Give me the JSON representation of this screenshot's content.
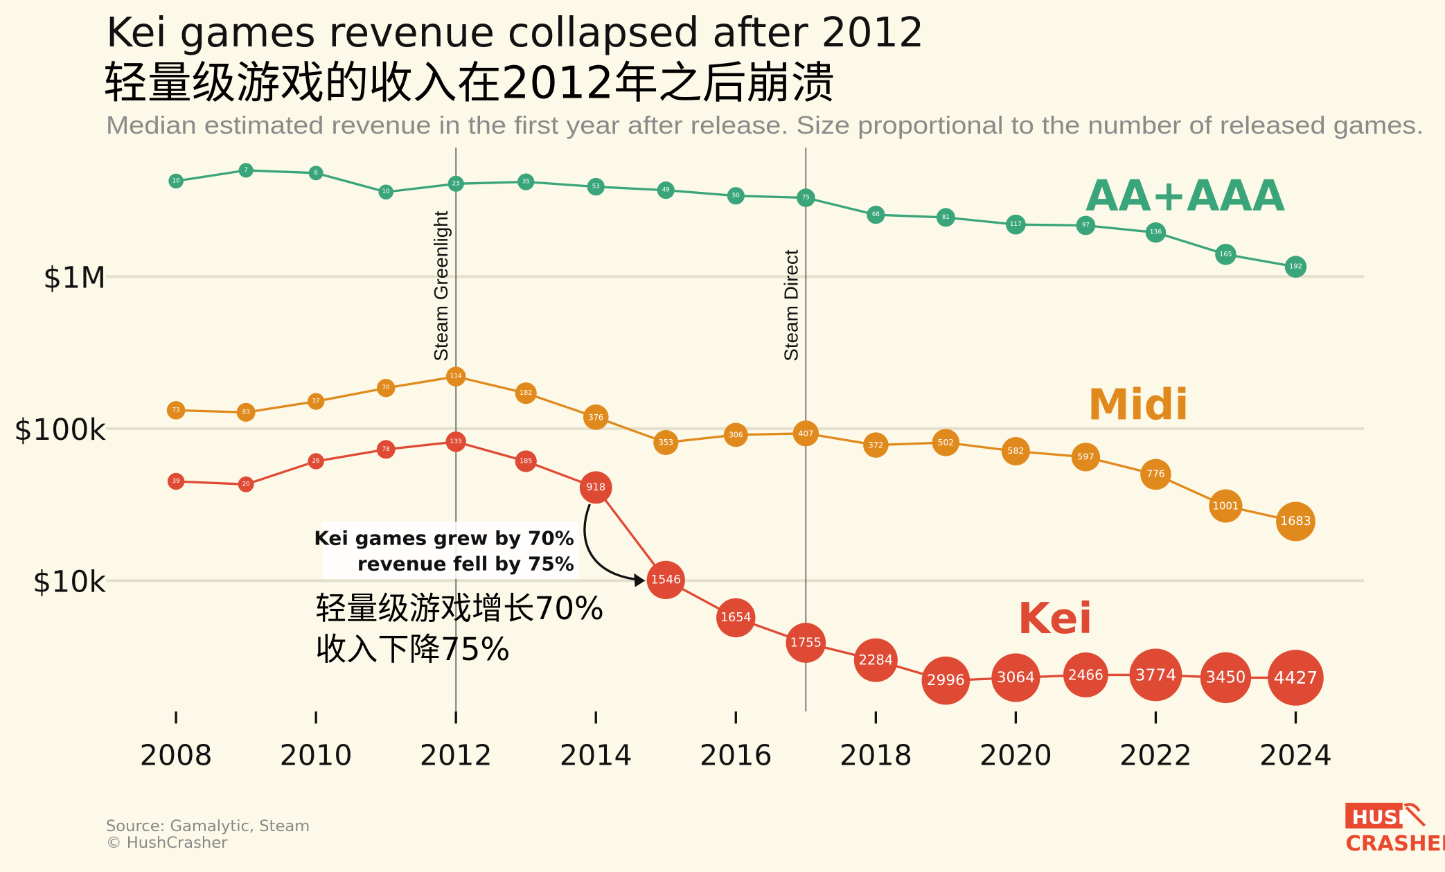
{
  "title": "Kei games revenue collapsed after 2012",
  "subtitle": "Median estimated revenue in the first year after release. Size proportional to the number of released games.",
  "title_translation": "轻量级游戏的收入在2012年之后崩溃",
  "source": "Source: Gamalytic, Steam",
  "copyright": "© HushCrasher",
  "logo": {
    "line1": "HUSH",
    "line2": "CRASHER",
    "color": "#e8492f"
  },
  "chart_data": {
    "type": "line",
    "title": "Kei games revenue collapsed after 2012",
    "xlabel": "",
    "ylabel": "",
    "y_scale": "log",
    "ylim": [
      1000,
      6000000
    ],
    "grid": true,
    "y_ticks": [
      {
        "value": 1000000,
        "label": "$1M"
      },
      {
        "value": 100000,
        "label": "$100k"
      },
      {
        "value": 10000,
        "label": "$10k"
      }
    ],
    "x_ticks": [
      2008,
      2010,
      2012,
      2014,
      2016,
      2018,
      2020,
      2022,
      2024
    ],
    "x_tick_labels": [
      "2008",
      "2010",
      "2012",
      "2014",
      "2016",
      "2018",
      "2020",
      "2022",
      "2024"
    ],
    "x": [
      2008,
      2009,
      2010,
      2011,
      2012,
      2013,
      2014,
      2015,
      2016,
      2017,
      2018,
      2019,
      2020,
      2021,
      2022,
      2023,
      2024
    ],
    "series": [
      {
        "name": "AA+AAA",
        "color": "#3aa57a",
        "values": [
          4250000,
          5000000,
          4800000,
          3600000,
          4080000,
          4200000,
          3900000,
          3700000,
          3400000,
          3300000,
          2550000,
          2450000,
          2200000,
          2170000,
          1950000,
          1400000,
          1160000
        ],
        "game_counts": [
          10,
          7,
          6,
          10,
          23,
          35,
          53,
          49,
          50,
          75,
          68,
          81,
          117,
          97,
          136,
          165,
          192
        ]
      },
      {
        "name": "Midi",
        "color": "#e08a1e",
        "values": [
          132000,
          128000,
          151000,
          185000,
          220000,
          171000,
          119000,
          81000,
          91000,
          93000,
          78000,
          81000,
          71000,
          65000,
          50000,
          31000,
          24500
        ],
        "game_counts": [
          73,
          83,
          37,
          70,
          114,
          182,
          376,
          353,
          306,
          407,
          372,
          502,
          582,
          597,
          776,
          1001,
          1683
        ]
      },
      {
        "name": "Kei",
        "color": "#de4a33",
        "values": [
          45000,
          43000,
          61000,
          73000,
          82000,
          61000,
          41000,
          10100,
          5700,
          3900,
          3000,
          2200,
          2300,
          2400,
          2400,
          2300,
          2300
        ],
        "game_counts": [
          39,
          20,
          26,
          78,
          135,
          185,
          918,
          1546,
          1654,
          1755,
          2284,
          2996,
          3064,
          2466,
          3774,
          3450,
          4427
        ]
      }
    ],
    "events": [
      {
        "year": 2012,
        "label": "Steam Greenlight"
      },
      {
        "year": 2017,
        "label": "Steam Direct"
      }
    ],
    "annotation": {
      "line1": "Kei games grew by 70%",
      "line2": "revenue fell by 75%",
      "translation_line1": "轻量级游戏增长70%",
      "translation_line2": "收入下降75%"
    }
  }
}
